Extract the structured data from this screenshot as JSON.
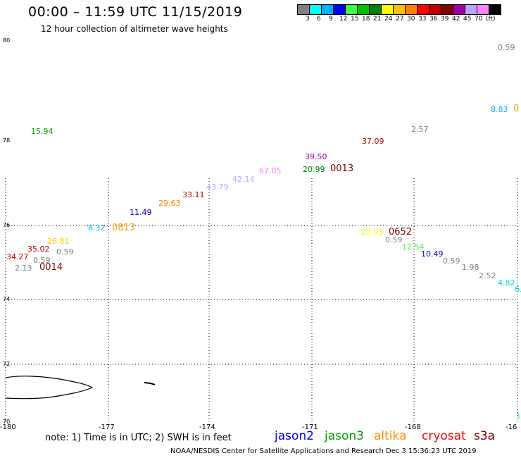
{
  "header": {
    "title": "00:00 – 11:59 UTC 11/15/2019",
    "subtitle": "12 hour collection of altimeter wave heights"
  },
  "colorbar": {
    "colors": [
      "#808080",
      "#00ffff",
      "#00b0ff",
      "#0000ff",
      "#40ff40",
      "#00c000",
      "#008000",
      "#ffff00",
      "#ffc000",
      "#ff8000",
      "#ff0000",
      "#c00000",
      "#800000",
      "#a000a0",
      "#c0a0ff",
      "#ff80ff",
      "#000000"
    ],
    "labels": [
      "3",
      "6",
      "9",
      "12",
      "15",
      "18",
      "21",
      "24",
      "27",
      "30",
      "33",
      "36",
      "39",
      "42",
      "45",
      "70",
      "(ft)"
    ]
  },
  "axes": {
    "lat_labels": [
      "80",
      "78",
      "76",
      "74",
      "72",
      "70"
    ],
    "lon_labels": [
      "-180",
      "-177",
      "-174",
      "-171",
      "-168",
      "-16"
    ]
  },
  "points": [
    {
      "text": "0.59",
      "color": "#808080"
    },
    {
      "text": "8.83",
      "color": "#00b0ff"
    },
    {
      "text": "0",
      "color": "#ffa000"
    },
    {
      "text": "15.94",
      "color": "#00a000"
    },
    {
      "text": "2.57",
      "color": "#808080"
    },
    {
      "text": "37.09",
      "color": "#c00000"
    },
    {
      "text": "39.50",
      "color": "#a000a0"
    },
    {
      "text": "20.99",
      "color": "#008000"
    },
    {
      "text": "0013",
      "color": "#800000"
    },
    {
      "text": "67.05",
      "color": "#ff80ff"
    },
    {
      "text": "42.14",
      "color": "#c0a0ff"
    },
    {
      "text": "43.79",
      "color": "#c0a0ff"
    },
    {
      "text": "33.11",
      "color": "#c00000"
    },
    {
      "text": "29.63",
      "color": "#ff8000"
    },
    {
      "text": "11.49",
      "color": "#0000c0"
    },
    {
      "text": "8.32",
      "color": "#00b0ff"
    },
    {
      "text": "0813",
      "color": "#ffa000"
    },
    {
      "text": "26.81",
      "color": "#ffd000"
    },
    {
      "text": "35.02",
      "color": "#c00000"
    },
    {
      "text": "0.59",
      "color": "#808080"
    },
    {
      "text": "34.27",
      "color": "#c00000"
    },
    {
      "text": "0.59",
      "color": "#808080"
    },
    {
      "text": "2.13",
      "color": "#808080"
    },
    {
      "text": "0014",
      "color": "#800000"
    },
    {
      "text": "22.93",
      "color": "#ffff00"
    },
    {
      "text": "0652",
      "color": "#800000"
    },
    {
      "text": "0.59",
      "color": "#808080"
    },
    {
      "text": "12.54",
      "color": "#40ff40"
    },
    {
      "text": "10.49",
      "color": "#0000c0"
    },
    {
      "text": "0.59",
      "color": "#808080"
    },
    {
      "text": "1.98",
      "color": "#808080"
    },
    {
      "text": "2.52",
      "color": "#808080"
    },
    {
      "text": "4.82",
      "color": "#00d0d0"
    },
    {
      "text": "6.",
      "color": "#00d0d0"
    },
    {
      "text": "1",
      "color": "#40ff40"
    }
  ],
  "footer": {
    "note": "note: 1) Time is in UTC; 2) SWH is in feet",
    "legend": [
      {
        "text": "jason2",
        "color": "#0000ff"
      },
      {
        "text": "jason3",
        "color": "#00a000"
      },
      {
        "text": "altika",
        "color": "#ff9000"
      },
      {
        "text": "cryosat",
        "color": "#ff0000"
      },
      {
        "text": "s3a",
        "color": "#800000"
      }
    ],
    "credit": "NOAA/NESDIS Center for Satellite Applications and Research   Dec  3 15:36:23 UTC 2019"
  }
}
